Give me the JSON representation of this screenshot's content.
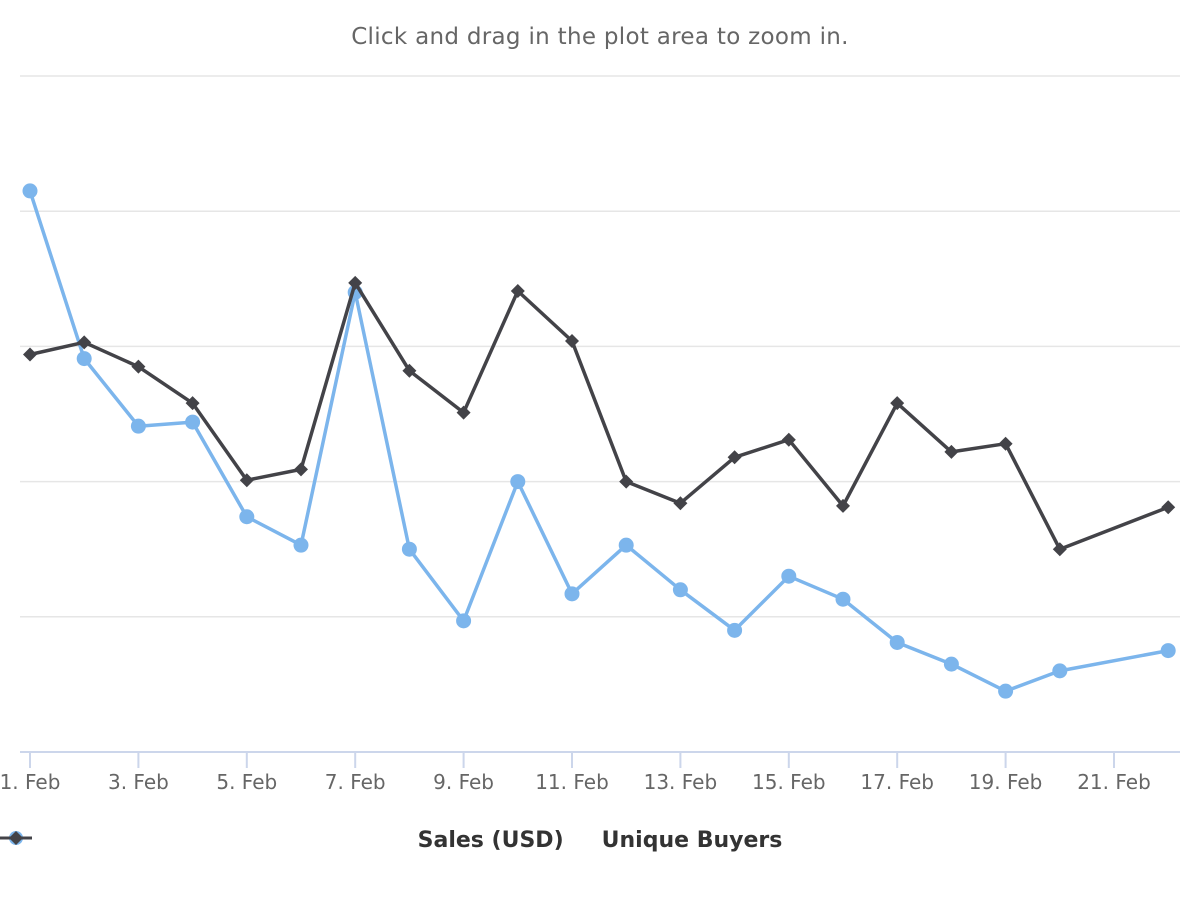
{
  "subtitle": "Click and drag in the plot area to zoom in.",
  "colors": {
    "sales": "#7cb5ec",
    "buyers": "#434348",
    "grid": "#e6e6e6",
    "axis": "#ccd6eb",
    "label": "#666666"
  },
  "chart_data": {
    "type": "line",
    "x_axis": {
      "type": "datetime",
      "categories": [
        "1. Feb",
        "2. Feb",
        "3. Feb",
        "4. Feb",
        "5. Feb",
        "6. Feb",
        "7. Feb",
        "8. Feb",
        "9. Feb",
        "10. Feb",
        "11. Feb",
        "12. Feb",
        "13. Feb",
        "14. Feb",
        "15. Feb",
        "16. Feb",
        "17. Feb",
        "18. Feb",
        "19. Feb",
        "20. Feb",
        "21. Feb",
        "22. Feb"
      ],
      "tick_labels": [
        "1. Feb",
        "3. Feb",
        "5. Feb",
        "7. Feb",
        "9. Feb",
        "11. Feb",
        "13. Feb",
        "15. Feb",
        "17. Feb",
        "19. Feb",
        "21. Feb"
      ]
    },
    "y_axis": {
      "range": [
        0,
        5
      ],
      "gridlines": 6,
      "labels_visible": false
    },
    "grid": true,
    "legend": "bottom-center",
    "series": [
      {
        "name": "Sales (USD)",
        "key": "sales",
        "marker": "circle",
        "points": [
          {
            "x": "1. Feb",
            "y": 4.15
          },
          {
            "x": "2. Feb",
            "y": 2.91
          },
          {
            "x": "3. Feb",
            "y": 2.41
          },
          {
            "x": "4. Feb",
            "y": 2.44
          },
          {
            "x": "5. Feb",
            "y": 1.74
          },
          {
            "x": "6. Feb",
            "y": 1.53
          },
          {
            "x": "7. Feb",
            "y": 3.4
          },
          {
            "x": "8. Feb",
            "y": 1.5
          },
          {
            "x": "9. Feb",
            "y": 0.97
          },
          {
            "x": "10. Feb",
            "y": 2.0
          },
          {
            "x": "11. Feb",
            "y": 1.17
          },
          {
            "x": "12. Feb",
            "y": 1.53
          },
          {
            "x": "13. Feb",
            "y": 1.2
          },
          {
            "x": "14. Feb",
            "y": 0.9
          },
          {
            "x": "15. Feb",
            "y": 1.3
          },
          {
            "x": "16. Feb",
            "y": 1.13
          },
          {
            "x": "17. Feb",
            "y": 0.81
          },
          {
            "x": "18. Feb",
            "y": 0.65
          },
          {
            "x": "19. Feb",
            "y": 0.45
          },
          {
            "x": "20. Feb",
            "y": 0.6
          },
          {
            "x": "22. Feb",
            "y": 0.75
          }
        ]
      },
      {
        "name": "Unique Buyers",
        "key": "buyers",
        "marker": "diamond",
        "points": [
          {
            "x": "1. Feb",
            "y": 2.94
          },
          {
            "x": "2. Feb",
            "y": 3.03
          },
          {
            "x": "3. Feb",
            "y": 2.85
          },
          {
            "x": "4. Feb",
            "y": 2.58
          },
          {
            "x": "5. Feb",
            "y": 2.01
          },
          {
            "x": "6. Feb",
            "y": 2.09
          },
          {
            "x": "7. Feb",
            "y": 3.47
          },
          {
            "x": "8. Feb",
            "y": 2.82
          },
          {
            "x": "9. Feb",
            "y": 2.51
          },
          {
            "x": "10. Feb",
            "y": 3.41
          },
          {
            "x": "11. Feb",
            "y": 3.04
          },
          {
            "x": "12. Feb",
            "y": 2.0
          },
          {
            "x": "13. Feb",
            "y": 1.84
          },
          {
            "x": "14. Feb",
            "y": 2.18
          },
          {
            "x": "15. Feb",
            "y": 2.31
          },
          {
            "x": "16. Feb",
            "y": 1.82
          },
          {
            "x": "17. Feb",
            "y": 2.58
          },
          {
            "x": "18. Feb",
            "y": 2.22
          },
          {
            "x": "19. Feb",
            "y": 2.28
          },
          {
            "x": "20. Feb",
            "y": 1.5
          },
          {
            "x": "22. Feb",
            "y": 1.81
          }
        ]
      }
    ]
  }
}
